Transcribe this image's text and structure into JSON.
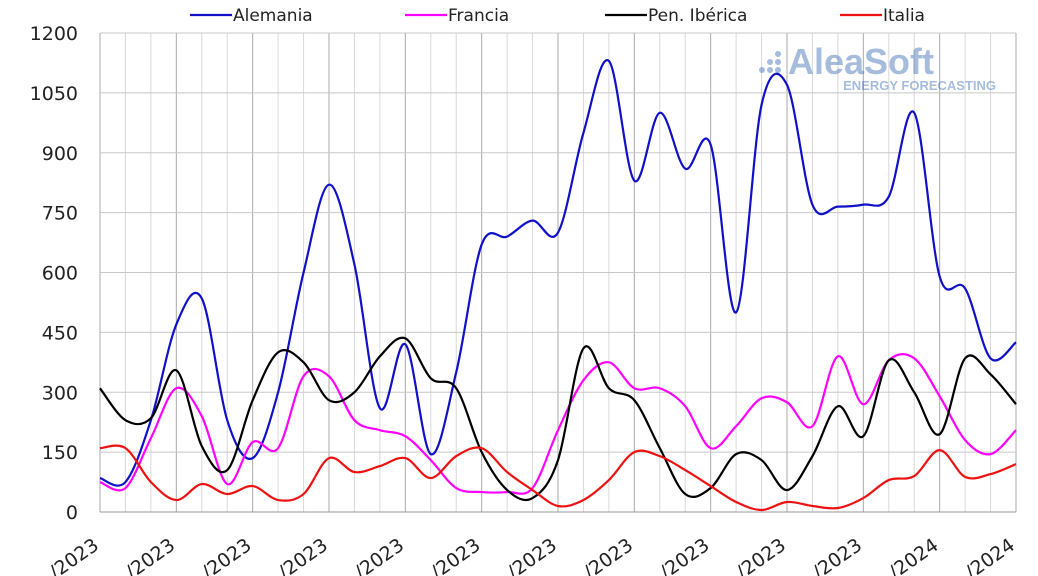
{
  "chart_data": {
    "type": "line",
    "categories": [
      "/2023",
      null,
      null,
      "/2023",
      null,
      null,
      "/2023",
      null,
      null,
      "/2023",
      null,
      null,
      "/2023",
      null,
      null,
      "/2023",
      null,
      null,
      "/2023",
      null,
      null,
      "/2023",
      null,
      null,
      "/2023",
      null,
      null,
      "/2023",
      null,
      null,
      "/2023",
      null,
      null,
      "/2024",
      null,
      null,
      "/2024"
    ],
    "series": [
      {
        "name": "Alemania",
        "color": "#1010c8",
        "values": [
          85,
          75,
          230,
          470,
          535,
          230,
          135,
          300,
          600,
          820,
          620,
          260,
          420,
          145,
          350,
          670,
          690,
          730,
          700,
          950,
          1130,
          830,
          1000,
          860,
          920,
          500,
          1020,
          1070,
          770,
          765,
          770,
          790,
          1000,
          590,
          560,
          385,
          425
        ]
      },
      {
        "name": "Francia",
        "color": "#ff00ff",
        "values": [
          75,
          60,
          185,
          310,
          240,
          70,
          175,
          160,
          340,
          340,
          230,
          205,
          190,
          130,
          60,
          50,
          50,
          60,
          205,
          330,
          375,
          310,
          310,
          265,
          160,
          215,
          285,
          275,
          215,
          390,
          270,
          380,
          385,
          290,
          180,
          145,
          205
        ]
      },
      {
        "name": "Pen. Ibérica",
        "color": "#000000",
        "values": [
          310,
          230,
          235,
          355,
          165,
          105,
          280,
          400,
          375,
          280,
          300,
          390,
          435,
          335,
          310,
          150,
          55,
          35,
          130,
          410,
          310,
          280,
          160,
          45,
          60,
          145,
          130,
          55,
          140,
          265,
          190,
          380,
          300,
          195,
          385,
          345,
          270
        ]
      },
      {
        "name": "Italia",
        "color": "#ee1111",
        "values": [
          160,
          160,
          75,
          30,
          70,
          45,
          65,
          30,
          45,
          135,
          100,
          115,
          135,
          85,
          140,
          160,
          100,
          55,
          15,
          30,
          80,
          150,
          140,
          105,
          65,
          25,
          5,
          25,
          15,
          10,
          35,
          80,
          90,
          155,
          88,
          95,
          120
        ]
      }
    ],
    "ylim": [
      0,
      1200
    ],
    "yticks": [
      0,
      150,
      300,
      450,
      600,
      750,
      900,
      1050,
      1200
    ],
    "grid": true,
    "legend": "top",
    "watermark": {
      "name": "AleaSoft",
      "tagline": "ENERGY FORECASTING"
    }
  }
}
